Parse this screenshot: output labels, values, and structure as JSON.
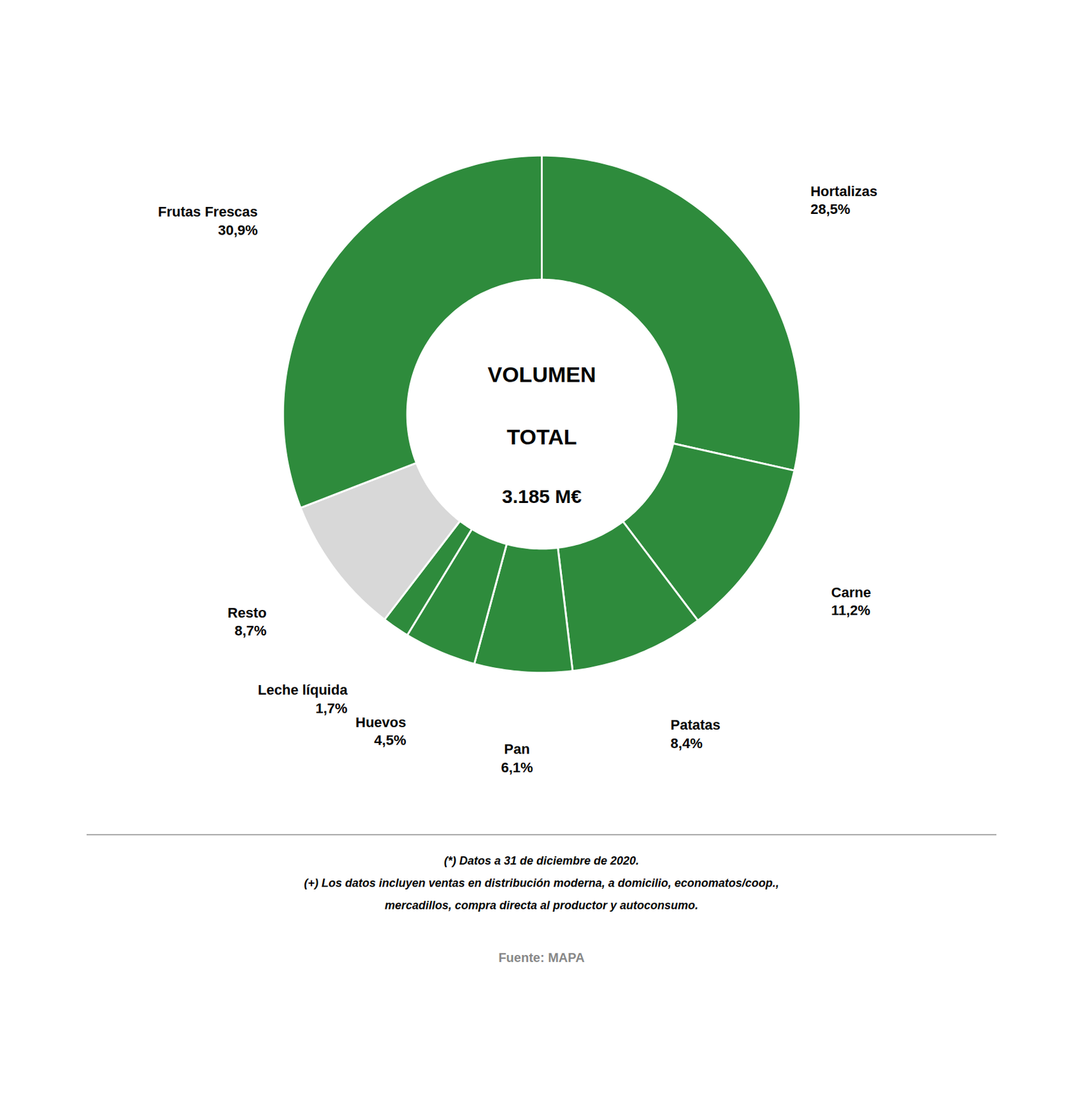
{
  "chart_data": {
    "type": "donut",
    "annotations": [
      "VOLUMEN",
      "TOTAL",
      "3.185 M€"
    ],
    "categories": [
      "Hortalizas",
      "Carne",
      "Patatas",
      "Pan",
      "Huevos",
      "Leche líquida",
      "Resto",
      "Frutas Frescas"
    ],
    "values": [
      28.5,
      11.2,
      8.4,
      6.1,
      4.5,
      1.7,
      8.7,
      30.9
    ],
    "value_labels": [
      "28,5%",
      "11,2%",
      "8,4%",
      "6,1%",
      "4,5%",
      "1,7%",
      "8,7%",
      "30,9%"
    ],
    "colors": [
      "#2e8b3c",
      "#2e8b3c",
      "#2e8b3c",
      "#2e8b3c",
      "#2e8b3c",
      "#2e8b3c",
      "#d8d8d8",
      "#2e8b3c"
    ],
    "data_labels": true,
    "footnotes": [
      "(*) Datos a 31 de diciembre de 2020.",
      "(+) Los datos incluyen ventas en distribución moderna, a domicilio, economatos/coop.,",
      "mercadillos, compra directa al productor y autoconsumo."
    ],
    "source": "Fuente: MAPA"
  }
}
